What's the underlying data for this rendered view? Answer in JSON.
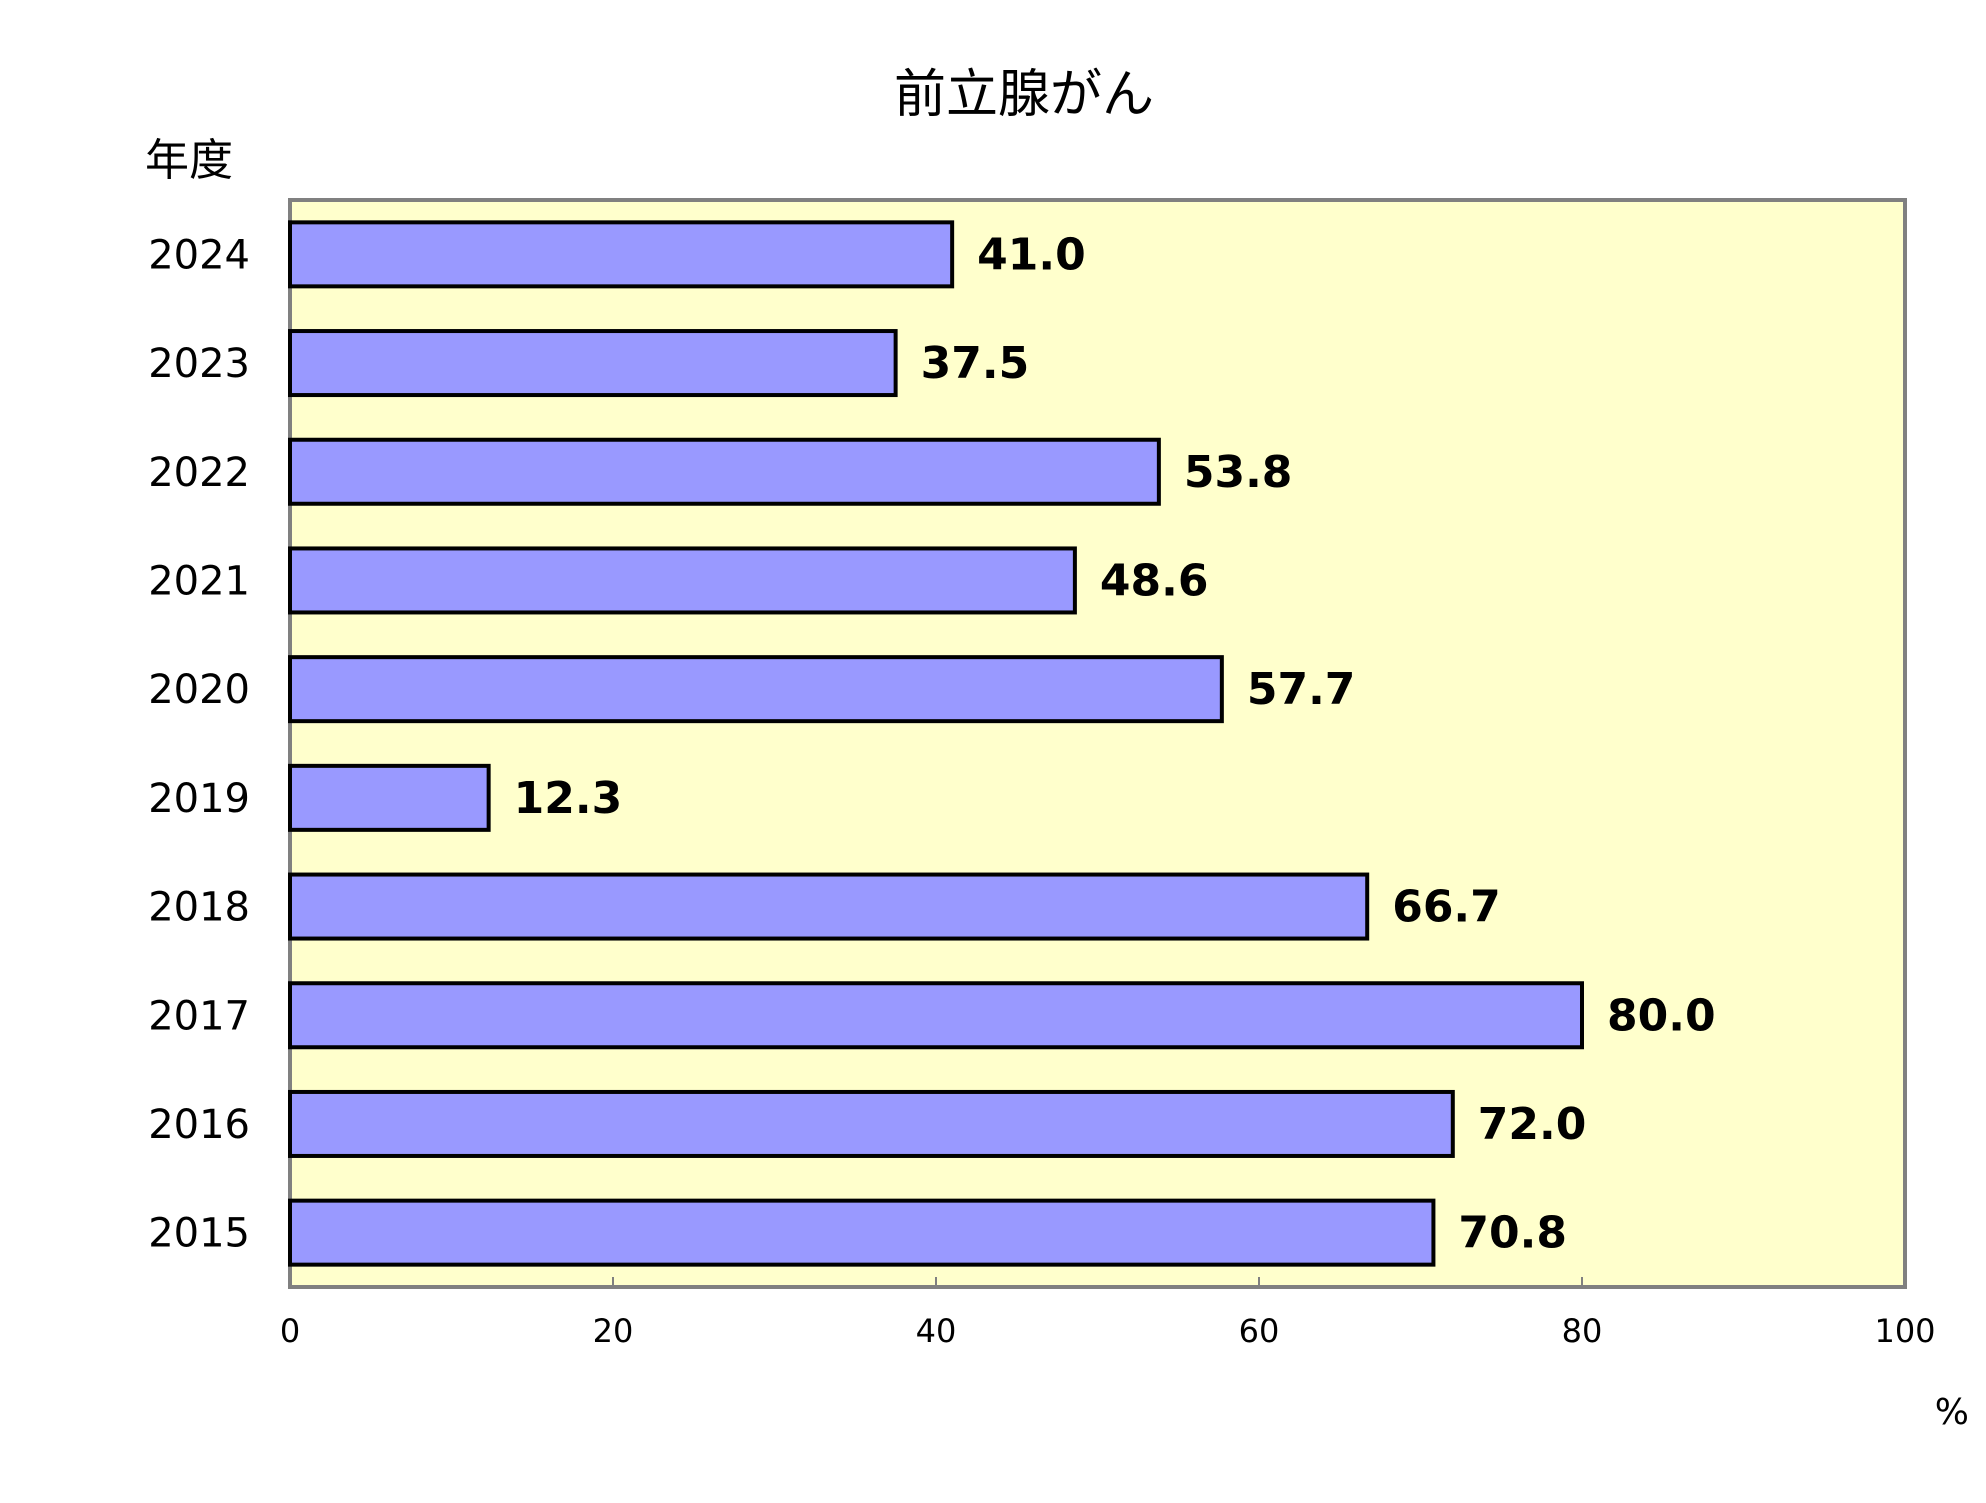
{
  "chart_data": {
    "type": "bar",
    "orientation": "horizontal",
    "title": "前立腺がん",
    "ylabel": "年度",
    "xlabel": "%",
    "categories": [
      "2024",
      "2023",
      "2022",
      "2021",
      "2020",
      "2019",
      "2018",
      "2017",
      "2016",
      "2015"
    ],
    "values": [
      41.0,
      37.5,
      53.8,
      48.6,
      57.7,
      12.3,
      66.7,
      80.0,
      72.0,
      70.8
    ],
    "value_labels": [
      "41.0",
      "37.5",
      "53.8",
      "48.6",
      "57.7",
      "12.3",
      "66.7",
      "80.0",
      "72.0",
      "70.8"
    ],
    "xlim": [
      0,
      100
    ],
    "xticks": [
      "0",
      "20",
      "40",
      "60",
      "80",
      "100"
    ],
    "grid": false,
    "legend": "none",
    "colors": {
      "bar_fill": "#9999ff",
      "bar_stroke": "#000000",
      "plot_background": "#ffffcc",
      "plot_border": "#808080"
    }
  }
}
